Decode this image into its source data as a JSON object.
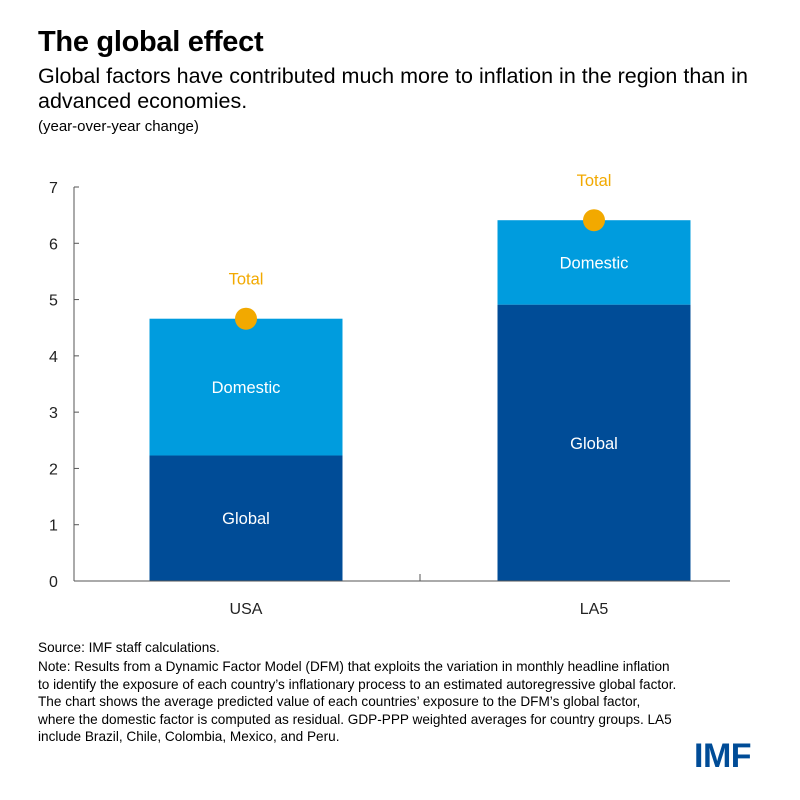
{
  "header": {
    "title": "The global effect",
    "subtitle": "Global factors have contributed much more to inflation in the region than in advanced economies.",
    "units": "(year-over-year change)"
  },
  "chart_data": {
    "type": "bar",
    "stacked": true,
    "categories": [
      "USA",
      "LA5"
    ],
    "series": [
      {
        "name": "Global",
        "values": [
          2.23,
          4.91
        ],
        "color": "#004C97"
      },
      {
        "name": "Domestic",
        "values": [
          2.43,
          1.5
        ],
        "color": "#009CDE"
      }
    ],
    "total": {
      "name": "Total",
      "values": [
        4.66,
        6.41
      ],
      "color": "#F2A900"
    },
    "ylim": [
      0,
      7
    ],
    "yticks": [
      "0",
      "1",
      "2",
      "3",
      "4",
      "5",
      "6",
      "7"
    ],
    "grid": false,
    "legend": "inline labels"
  },
  "footer": {
    "source": "Source: IMF staff calculations.",
    "note": "Note: Results from a Dynamic Factor Model (DFM) that exploits the variation in monthly headline inflation to identify the exposure of each country’s inflationary process to an estimated autoregressive global factor. The chart shows the average predicted value of each countries’ exposure to the DFM’s global factor, where the domestic factor is computed as residual. GDP-PPP weighted averages for country groups. LA5 include Brazil, Chile, Colombia, Mexico, and Peru.",
    "logo": "IMF"
  }
}
